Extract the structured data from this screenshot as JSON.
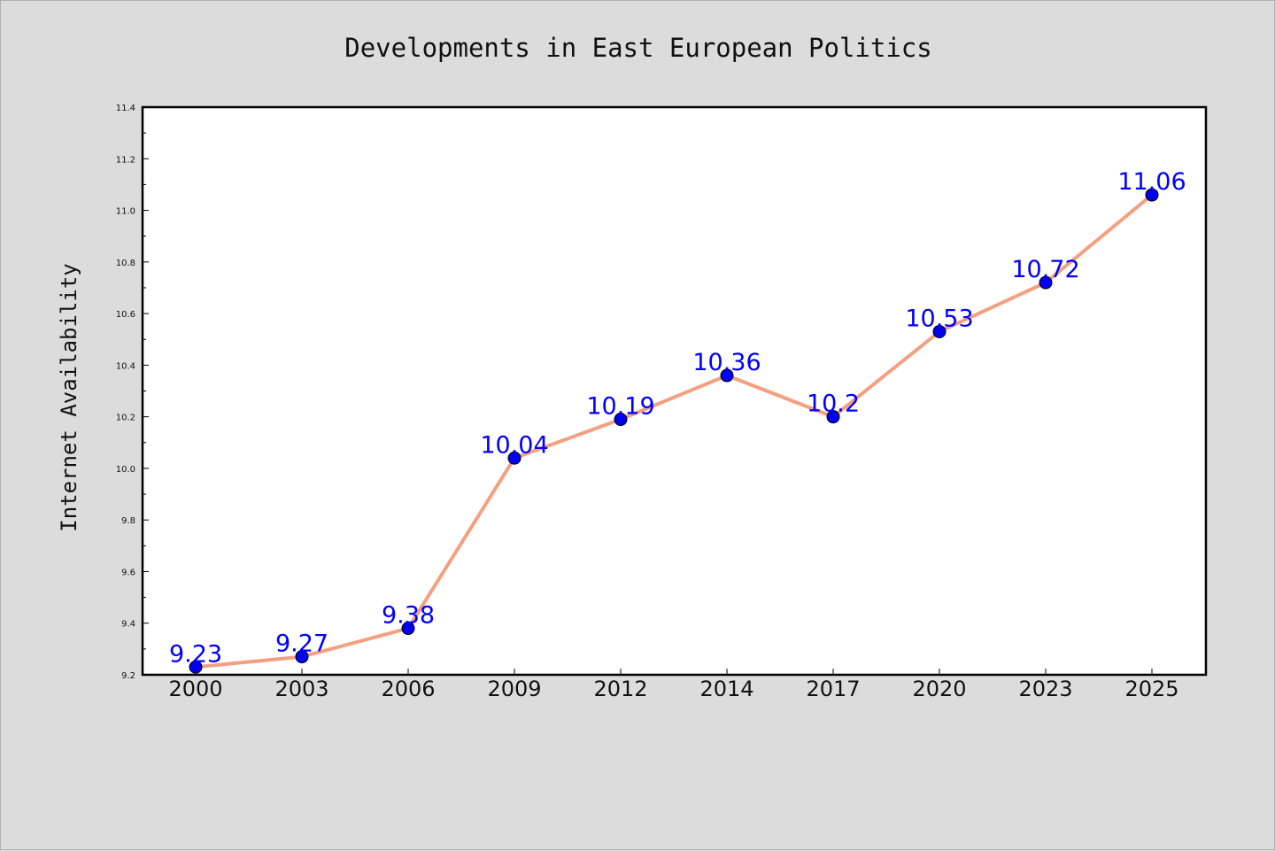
{
  "chart_data": {
    "type": "line",
    "title": "Developments in East European Politics",
    "xlabel": "",
    "ylabel": "Internet Availability",
    "categories": [
      "2000",
      "2003",
      "2006",
      "2009",
      "2012",
      "2014",
      "2017",
      "2020",
      "2023",
      "2025"
    ],
    "series": [
      {
        "values": [
          9.23,
          9.27,
          9.38,
          10.04,
          10.19,
          10.36,
          10.2,
          10.53,
          10.72,
          11.06
        ],
        "labels": [
          "9.23",
          "9.27",
          "9.38",
          "10.04",
          "10.19",
          "10.36",
          "10.2",
          "10.53",
          "10.72",
          "11.06"
        ],
        "line_color": "#f4a080",
        "marker_color": "#0000ee"
      }
    ],
    "ylim": [
      9.2,
      11.4
    ],
    "yticks": [
      "9.2",
      "9.4",
      "9.6",
      "9.8",
      "10.0",
      "10.2",
      "10.4",
      "10.6",
      "10.8",
      "11.0",
      "11.2",
      "11.4"
    ],
    "grid": false,
    "legend": "none"
  }
}
